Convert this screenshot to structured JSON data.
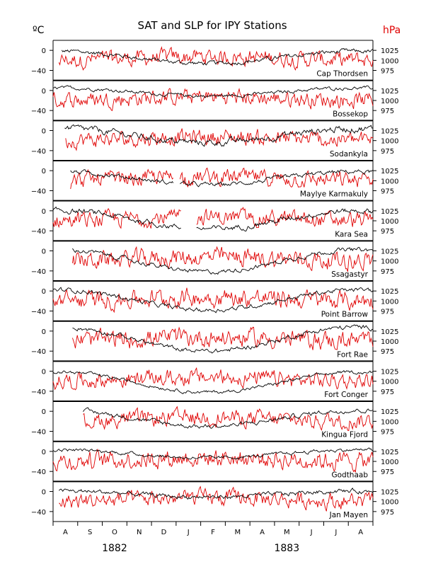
{
  "chart_data": {
    "type": "line",
    "title": "SAT and SLP for IPY Stations",
    "left_unit": "ºC",
    "right_unit": "hPa",
    "colors": {
      "sat": "#000000",
      "slp": "#e00000",
      "axis": "#000000"
    },
    "left_axis": {
      "range": [
        -60,
        20
      ],
      "ticks": [
        0,
        -40
      ],
      "tick_labels": [
        "0",
        "−40"
      ]
    },
    "right_axis": {
      "range": [
        950,
        1050
      ],
      "ticks": [
        1025,
        1000,
        975
      ],
      "tick_labels": [
        "1025",
        "1000",
        "975"
      ]
    },
    "x_axis": {
      "start": "1882-08-01",
      "end": "1883-08-31",
      "month_labels": [
        "A",
        "S",
        "O",
        "N",
        "D",
        "J",
        "F",
        "M",
        "A",
        "M",
        "J",
        "J",
        "A"
      ],
      "year_labels": [
        {
          "label": "1882",
          "month_index": 2.5
        },
        {
          "label": "1883",
          "month_index": 9.5
        }
      ]
    },
    "series_legend": [
      {
        "name": "SAT",
        "axis": "left",
        "color": "#000000"
      },
      {
        "name": "SLP",
        "axis": "right",
        "color": "#e00000"
      }
    ],
    "stations": [
      {
        "name": "Cap Thordsen",
        "start": [
          0.35,
          0.2
        ],
        "sat_base": -14,
        "sat_amp": 12,
        "sat_noise": 4,
        "slp_noise": 14,
        "gap": null
      },
      {
        "name": "Bossekop",
        "start": [
          0.0,
          0.0
        ],
        "sat_base": -3,
        "sat_amp": 8,
        "sat_noise": 3,
        "slp_noise": 14,
        "gap": null
      },
      {
        "name": "Sodankyla",
        "start": [
          0.45,
          0.5
        ],
        "sat_base": -10,
        "sat_amp": 14,
        "sat_noise": 6,
        "slp_noise": 14,
        "gap": null
      },
      {
        "name": "Maylye Karmakuly",
        "start": [
          0.7,
          0.7
        ],
        "sat_base": -15,
        "sat_amp": 13,
        "sat_noise": 4,
        "slp_noise": 14,
        "gap": [
          4.9,
          5.15
        ]
      },
      {
        "name": "Kara Sea",
        "start": [
          0.0,
          0.0
        ],
        "sat_base": -18,
        "sat_amp": 18,
        "sat_noise": 5,
        "slp_noise": 14,
        "gap": [
          5.2,
          5.8
        ]
      },
      {
        "name": "Ssagastyr",
        "start": [
          0.75,
          0.75
        ],
        "sat_base": -20,
        "sat_amp": 22,
        "sat_noise": 4,
        "slp_noise": 16,
        "gap": null
      },
      {
        "name": "Point Barrow",
        "start": [
          0.0,
          0.0
        ],
        "sat_base": -18,
        "sat_amp": 20,
        "sat_noise": 4,
        "slp_noise": 16,
        "gap": null
      },
      {
        "name": "Fort Rae",
        "start": [
          0.75,
          0.75
        ],
        "sat_base": -16,
        "sat_amp": 24,
        "sat_noise": 4,
        "slp_noise": 16,
        "gap": null
      },
      {
        "name": "Fort Conger",
        "start": [
          0.0,
          0.0
        ],
        "sat_base": -22,
        "sat_amp": 20,
        "sat_noise": 3,
        "slp_noise": 14,
        "gap": null
      },
      {
        "name": "Kingua Fjord",
        "start": [
          1.2,
          1.2
        ],
        "sat_base": -14,
        "sat_amp": 16,
        "sat_noise": 4,
        "slp_noise": 14,
        "gap": null
      },
      {
        "name": "Godthaab",
        "start": [
          0.0,
          0.0
        ],
        "sat_base": -5,
        "sat_amp": 8,
        "sat_noise": 3,
        "slp_noise": 16,
        "gap": null
      },
      {
        "name": "Jan Mayen",
        "start": [
          0.2,
          0.2
        ],
        "sat_base": -5,
        "sat_amp": 6,
        "sat_noise": 4,
        "slp_noise": 14,
        "gap": null
      }
    ]
  }
}
